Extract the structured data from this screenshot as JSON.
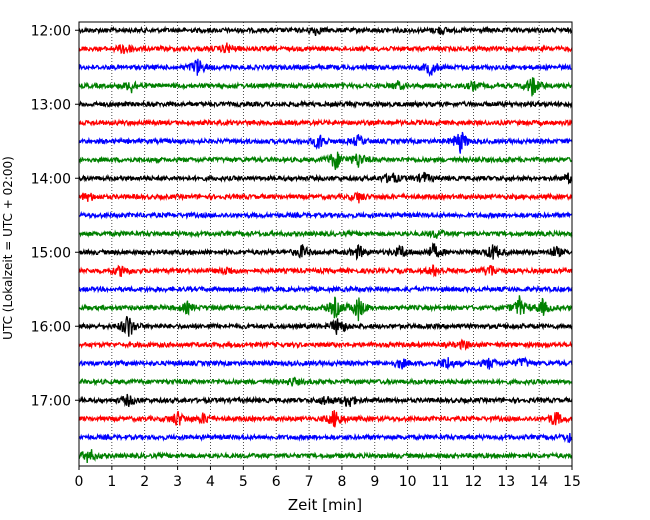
{
  "chart_data": {
    "type": "line",
    "title": "",
    "xlabel": "Zeit  [min]",
    "ylabel": "UTC (Lokalzeit = UTC + 02:00)",
    "xlim": [
      0,
      15
    ],
    "x_ticks": [
      "0",
      "1",
      "2",
      "3",
      "4",
      "5",
      "6",
      "7",
      "8",
      "9",
      "10",
      "11",
      "12",
      "13",
      "14",
      "15"
    ],
    "y_ticks": [
      "12:00",
      "13:00",
      "14:00",
      "15:00",
      "16:00",
      "17:00"
    ],
    "grid": "vertical dotted",
    "trace_minutes": 15,
    "color_cycle": [
      "#000000",
      "#ff0000",
      "#0000ff",
      "#008000"
    ],
    "traces": [
      {
        "start": "12:00",
        "events": [
          [
            7.2,
            0.3
          ],
          [
            11.0,
            0.25
          ]
        ]
      },
      {
        "start": "12:15",
        "events": [
          [
            1.4,
            0.5
          ],
          [
            4.5,
            0.35
          ]
        ]
      },
      {
        "start": "12:30",
        "events": [
          [
            3.6,
            0.7
          ],
          [
            10.7,
            0.6
          ]
        ]
      },
      {
        "start": "12:45",
        "events": [
          [
            1.6,
            0.5
          ],
          [
            9.7,
            0.3
          ],
          [
            12.0,
            0.3
          ],
          [
            13.8,
            0.8
          ]
        ]
      },
      {
        "start": "13:00",
        "events": []
      },
      {
        "start": "13:15",
        "events": []
      },
      {
        "start": "13:30",
        "events": [
          [
            7.3,
            0.6
          ],
          [
            8.5,
            0.4
          ],
          [
            11.6,
            0.9
          ]
        ]
      },
      {
        "start": "13:45",
        "events": [
          [
            7.8,
            0.8
          ],
          [
            8.5,
            0.6
          ]
        ]
      },
      {
        "start": "14:00",
        "events": [
          [
            9.5,
            0.5
          ],
          [
            10.5,
            0.4
          ],
          [
            14.9,
            0.3
          ]
        ]
      },
      {
        "start": "14:15",
        "events": [
          [
            0.3,
            0.3
          ],
          [
            8.5,
            0.4
          ]
        ]
      },
      {
        "start": "14:30",
        "events": []
      },
      {
        "start": "14:45",
        "events": [
          [
            10.9,
            0.3
          ]
        ]
      },
      {
        "start": "15:00",
        "events": [
          [
            6.8,
            0.5
          ],
          [
            8.5,
            0.5
          ],
          [
            9.8,
            0.5
          ],
          [
            10.8,
            0.6
          ],
          [
            12.6,
            0.6
          ],
          [
            14.5,
            0.4
          ]
        ]
      },
      {
        "start": "15:15",
        "events": [
          [
            1.3,
            0.4
          ],
          [
            4.5,
            0.3
          ],
          [
            10.8,
            0.4
          ],
          [
            12.5,
            0.5
          ]
        ]
      },
      {
        "start": "15:30",
        "events": []
      },
      {
        "start": "15:45",
        "events": [
          [
            3.3,
            0.4
          ],
          [
            7.8,
            0.8
          ],
          [
            8.5,
            0.9
          ],
          [
            13.4,
            0.8
          ],
          [
            14.1,
            0.6
          ]
        ]
      },
      {
        "start": "16:00",
        "events": [
          [
            1.5,
            1.0
          ],
          [
            7.9,
            0.8
          ]
        ]
      },
      {
        "start": "16:15",
        "events": [
          [
            11.7,
            0.3
          ]
        ]
      },
      {
        "start": "16:30",
        "events": [
          [
            9.8,
            0.4
          ],
          [
            11.2,
            0.5
          ],
          [
            12.5,
            0.4
          ],
          [
            13.5,
            0.4
          ]
        ]
      },
      {
        "start": "16:45",
        "events": [
          [
            6.5,
            0.3
          ]
        ]
      },
      {
        "start": "17:00",
        "events": [
          [
            1.5,
            0.4
          ],
          [
            7.5,
            0.4
          ],
          [
            8.2,
            0.6
          ]
        ]
      },
      {
        "start": "17:15",
        "events": [
          [
            3.0,
            0.6
          ],
          [
            3.8,
            0.4
          ],
          [
            7.8,
            0.8
          ],
          [
            14.5,
            0.6
          ]
        ]
      },
      {
        "start": "17:30",
        "events": [
          [
            14.9,
            0.3
          ]
        ]
      },
      {
        "start": "17:45",
        "events": [
          [
            0.3,
            0.6
          ]
        ]
      }
    ]
  }
}
